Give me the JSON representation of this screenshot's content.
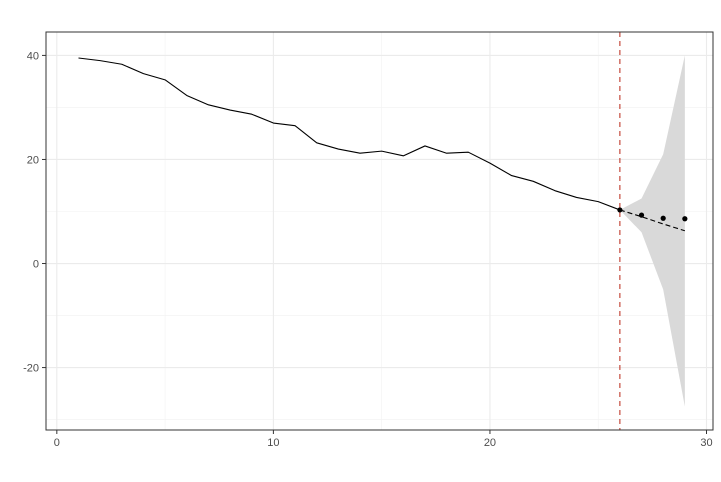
{
  "chart_data": {
    "type": "line",
    "title": "",
    "xlabel": "",
    "ylabel": "",
    "xlim": [
      -0.5,
      30.3
    ],
    "ylim": [
      -32,
      44.5
    ],
    "x_ticks": [
      0,
      10,
      20,
      30
    ],
    "y_ticks": [
      -20,
      0,
      20,
      40
    ],
    "x_tick_labels": [
      "0",
      "10",
      "20",
      "30"
    ],
    "y_tick_labels": [
      "-20",
      "0",
      "20",
      "40"
    ],
    "grid": true,
    "legend": "none",
    "series": [
      {
        "style": "solid",
        "color": "#000000",
        "x": [
          1,
          2,
          3,
          4,
          5,
          6,
          7,
          8,
          9,
          10,
          11,
          12,
          13,
          14,
          15,
          16,
          17,
          18,
          19,
          20,
          21,
          22,
          23,
          24,
          25,
          26
        ],
        "y": [
          39.5,
          39.0,
          38.3,
          36.5,
          35.3,
          32.3,
          30.5,
          29.5,
          28.7,
          27.0,
          26.5,
          23.2,
          22.0,
          21.2,
          21.6,
          20.7,
          22.6,
          21.2,
          21.4,
          19.3,
          16.9,
          15.8,
          14.0,
          12.7,
          11.9,
          10.3
        ]
      },
      {
        "style": "dashed",
        "color": "#000000",
        "x": [
          26,
          27,
          28,
          29
        ],
        "y": [
          10.3,
          9.0,
          7.6,
          6.3
        ]
      },
      {
        "style": "points",
        "color": "#000000",
        "x": [
          26,
          27,
          28,
          29
        ],
        "y": [
          10.3,
          9.3,
          8.7,
          8.6
        ]
      },
      {
        "style": "band",
        "color": "#d9d9d9",
        "x": [
          26,
          27,
          28,
          29
        ],
        "lower": [
          10.3,
          6.0,
          -5.0,
          -27.5
        ],
        "upper": [
          10.3,
          12.5,
          21.0,
          40.0
        ]
      }
    ],
    "vline": {
      "x": 26,
      "color": "#c0392b",
      "style": "dashed"
    }
  }
}
